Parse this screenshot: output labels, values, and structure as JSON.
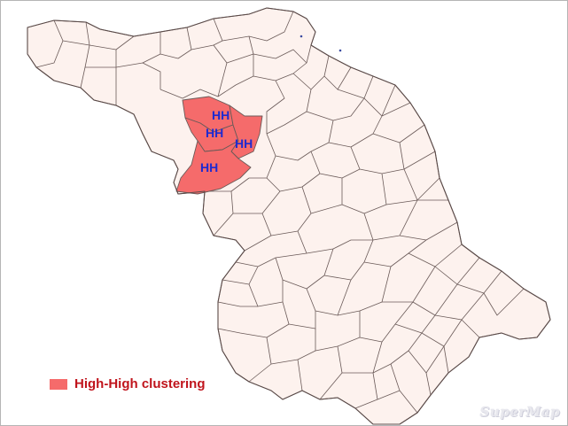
{
  "map": {
    "colors": {
      "county_fill": "#fdf2ee",
      "county_stroke": "#6a5a58",
      "high_high": "#f56b6b",
      "label_color": "#1f2ad0",
      "legend_text": "#c0141c"
    },
    "cluster_labels": [
      "HH",
      "HH",
      "HH",
      "HH"
    ],
    "legend": {
      "label": "High-High clustering",
      "color": "#f56b6b"
    },
    "watermark": "SuperMap"
  }
}
